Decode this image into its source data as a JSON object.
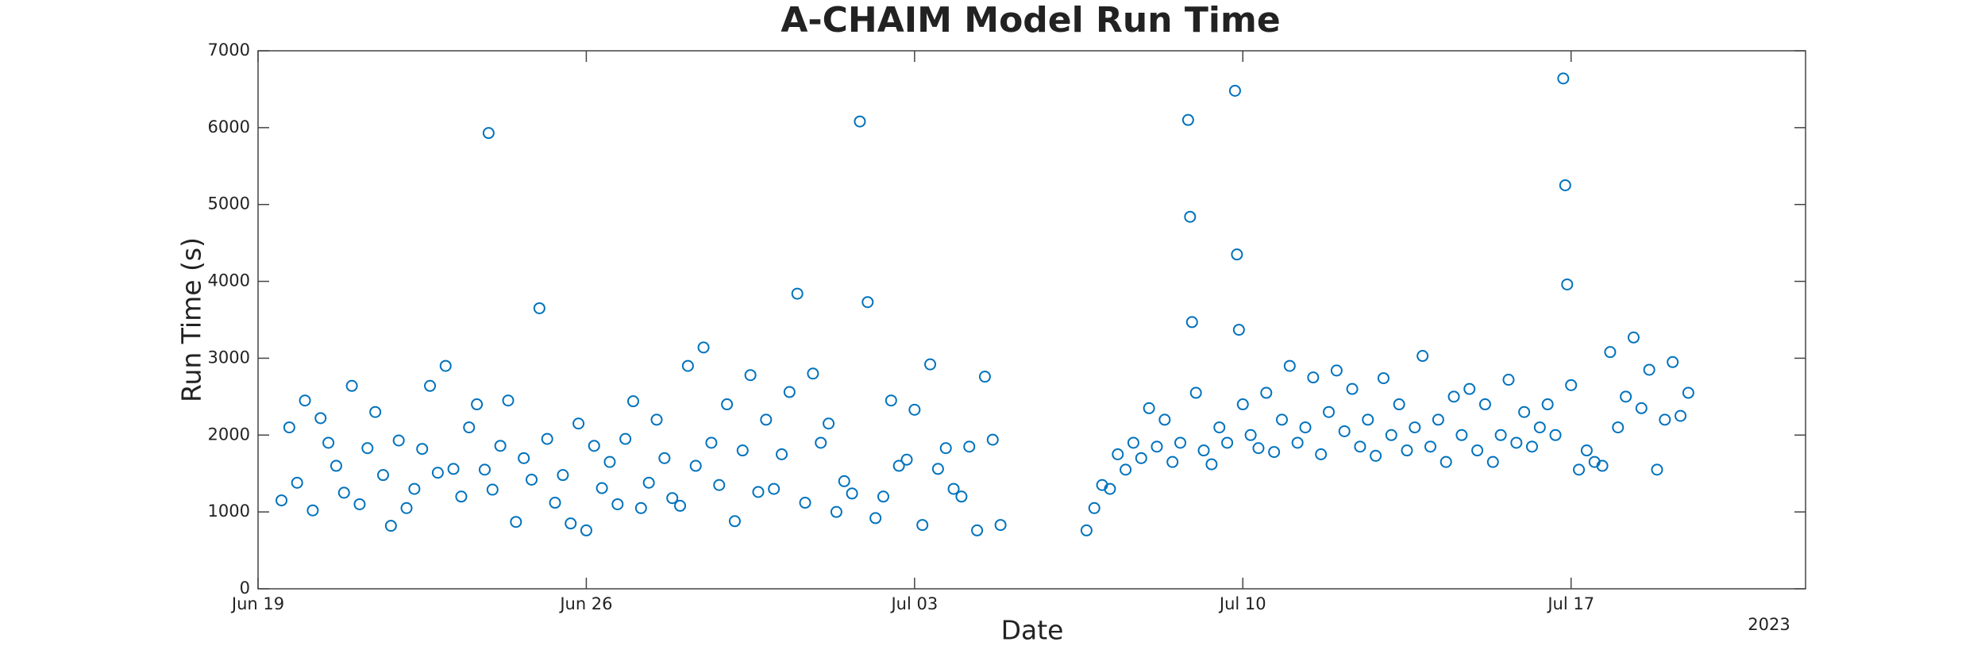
{
  "chart_data": {
    "type": "scatter",
    "title": "A-CHAIM Model Run Time",
    "x_label": "Date",
    "y_label": "Run Time (s)",
    "year_label": "2023",
    "series": [
      {
        "name": "Run Time",
        "color": "#0072bd",
        "x": [
          "2023-06-19T12:00",
          "2023-06-19T16:00",
          "2023-06-19T20:00",
          "2023-06-20T00:00",
          "2023-06-20T04:00",
          "2023-06-20T08:00",
          "2023-06-20T12:00",
          "2023-06-20T16:00",
          "2023-06-20T20:00",
          "2023-06-21T00:00",
          "2023-06-21T04:00",
          "2023-06-21T08:00",
          "2023-06-21T12:00",
          "2023-06-21T16:00",
          "2023-06-21T20:00",
          "2023-06-22T00:00",
          "2023-06-22T04:00",
          "2023-06-22T08:00",
          "2023-06-22T12:00",
          "2023-06-22T16:00",
          "2023-06-22T20:00",
          "2023-06-23T00:00",
          "2023-06-23T04:00",
          "2023-06-23T08:00",
          "2023-06-23T12:00",
          "2023-06-23T16:00",
          "2023-06-23T20:00",
          "2023-06-23T22:00",
          "2023-06-24T00:00",
          "2023-06-24T04:00",
          "2023-06-24T08:00",
          "2023-06-24T12:00",
          "2023-06-24T16:00",
          "2023-06-24T20:00",
          "2023-06-25T00:00",
          "2023-06-25T04:00",
          "2023-06-25T08:00",
          "2023-06-25T12:00",
          "2023-06-25T16:00",
          "2023-06-25T20:00",
          "2023-06-26T00:00",
          "2023-06-26T04:00",
          "2023-06-26T08:00",
          "2023-06-26T12:00",
          "2023-06-26T16:00",
          "2023-06-26T20:00",
          "2023-06-27T00:00",
          "2023-06-27T04:00",
          "2023-06-27T08:00",
          "2023-06-27T12:00",
          "2023-06-27T16:00",
          "2023-06-27T20:00",
          "2023-06-28T00:00",
          "2023-06-28T04:00",
          "2023-06-28T08:00",
          "2023-06-28T12:00",
          "2023-06-28T16:00",
          "2023-06-28T20:00",
          "2023-06-29T00:00",
          "2023-06-29T04:00",
          "2023-06-29T08:00",
          "2023-06-29T12:00",
          "2023-06-29T16:00",
          "2023-06-29T20:00",
          "2023-06-30T00:00",
          "2023-06-30T04:00",
          "2023-06-30T08:00",
          "2023-06-30T12:00",
          "2023-06-30T16:00",
          "2023-06-30T20:00",
          "2023-07-01T00:00",
          "2023-07-01T04:00",
          "2023-07-01T08:00",
          "2023-07-01T12:00",
          "2023-07-01T16:00",
          "2023-07-01T20:00",
          "2023-07-02T00:00",
          "2023-07-02T04:00",
          "2023-07-02T08:00",
          "2023-07-02T12:00",
          "2023-07-02T16:00",
          "2023-07-02T20:00",
          "2023-07-03T00:00",
          "2023-07-03T04:00",
          "2023-07-03T08:00",
          "2023-07-03T12:00",
          "2023-07-03T16:00",
          "2023-07-03T20:00",
          "2023-07-04T00:00",
          "2023-07-04T04:00",
          "2023-07-04T08:00",
          "2023-07-04T12:00",
          "2023-07-04T16:00",
          "2023-07-04T20:00",
          "2023-07-06T16:00",
          "2023-07-06T20:00",
          "2023-07-07T00:00",
          "2023-07-07T04:00",
          "2023-07-07T08:00",
          "2023-07-07T12:00",
          "2023-07-07T16:00",
          "2023-07-07T20:00",
          "2023-07-08T00:00",
          "2023-07-08T04:00",
          "2023-07-08T08:00",
          "2023-07-08T12:00",
          "2023-07-08T16:00",
          "2023-07-08T20:00",
          "2023-07-08T21:00",
          "2023-07-08T22:00",
          "2023-07-09T00:00",
          "2023-07-09T04:00",
          "2023-07-09T08:00",
          "2023-07-09T12:00",
          "2023-07-09T16:00",
          "2023-07-09T20:00",
          "2023-07-09T21:00",
          "2023-07-09T22:00",
          "2023-07-10T00:00",
          "2023-07-10T04:00",
          "2023-07-10T08:00",
          "2023-07-10T12:00",
          "2023-07-10T16:00",
          "2023-07-10T20:00",
          "2023-07-11T00:00",
          "2023-07-11T04:00",
          "2023-07-11T08:00",
          "2023-07-11T12:00",
          "2023-07-11T16:00",
          "2023-07-11T20:00",
          "2023-07-12T00:00",
          "2023-07-12T04:00",
          "2023-07-12T08:00",
          "2023-07-12T12:00",
          "2023-07-12T16:00",
          "2023-07-12T20:00",
          "2023-07-13T00:00",
          "2023-07-13T04:00",
          "2023-07-13T08:00",
          "2023-07-13T12:00",
          "2023-07-13T16:00",
          "2023-07-13T20:00",
          "2023-07-14T00:00",
          "2023-07-14T04:00",
          "2023-07-14T08:00",
          "2023-07-14T12:00",
          "2023-07-14T16:00",
          "2023-07-14T20:00",
          "2023-07-15T00:00",
          "2023-07-15T04:00",
          "2023-07-15T08:00",
          "2023-07-15T12:00",
          "2023-07-15T16:00",
          "2023-07-15T20:00",
          "2023-07-16T00:00",
          "2023-07-16T04:00",
          "2023-07-16T08:00",
          "2023-07-16T12:00",
          "2023-07-16T16:00",
          "2023-07-16T20:00",
          "2023-07-16T21:00",
          "2023-07-16T22:00",
          "2023-07-17T00:00",
          "2023-07-17T04:00",
          "2023-07-17T08:00",
          "2023-07-17T12:00",
          "2023-07-17T16:00",
          "2023-07-17T20:00",
          "2023-07-18T00:00",
          "2023-07-18T04:00",
          "2023-07-18T08:00",
          "2023-07-18T12:00",
          "2023-07-18T16:00",
          "2023-07-18T20:00",
          "2023-07-19T00:00",
          "2023-07-19T04:00",
          "2023-07-19T08:00",
          "2023-07-19T12:00"
        ],
        "values": [
          1150,
          2100,
          1380,
          2450,
          1020,
          2220,
          1900,
          1600,
          1250,
          2640,
          1100,
          1830,
          2300,
          1480,
          820,
          1930,
          1050,
          1300,
          1820,
          2640,
          1510,
          2900,
          1560,
          1200,
          2100,
          2400,
          1550,
          5930,
          1290,
          1860,
          2450,
          870,
          1700,
          1420,
          3650,
          1950,
          1120,
          1480,
          850,
          2150,
          760,
          1860,
          1310,
          1650,
          1100,
          1950,
          2440,
          1050,
          1380,
          2200,
          1700,
          1180,
          1080,
          2900,
          1600,
          3140,
          1900,
          1350,
          2400,
          880,
          1800,
          2780,
          1260,
          2200,
          1300,
          1750,
          2560,
          3840,
          1120,
          2800,
          1900,
          2150,
          1000,
          1400,
          1240,
          6080,
          3730,
          920,
          1200,
          2450,
          1600,
          1680,
          2330,
          830,
          2920,
          1560,
          1830,
          1300,
          1200,
          1850,
          760,
          2760,
          1940,
          830,
          760,
          1050,
          1350,
          1300,
          1750,
          1550,
          1900,
          1700,
          2350,
          1850,
          2200,
          1650,
          1900,
          6100,
          4840,
          3470,
          2550,
          1800,
          1620,
          2100,
          1900,
          6480,
          4350,
          3370,
          2400,
          2000,
          1830,
          2550,
          1780,
          2200,
          2900,
          1900,
          2100,
          2750,
          1750,
          2300,
          2840,
          2050,
          2600,
          1850,
          2200,
          1730,
          2740,
          2000,
          2400,
          1800,
          2100,
          3030,
          1850,
          2200,
          1650,
          2500,
          2000,
          2600,
          1800,
          2400,
          1650,
          2000,
          2720,
          1900,
          2300,
          1850,
          2100,
          2400,
          2000,
          6640,
          5250,
          3960,
          2650,
          1550,
          1800,
          1650,
          1600,
          3080,
          2100,
          2500,
          3270,
          2350,
          2850,
          1550,
          2200,
          2950,
          2250,
          2550
        ]
      }
    ],
    "xlim": [
      "2023-06-19T00:00",
      "2023-07-22T00:00"
    ],
    "xticks": [
      {
        "value": "2023-06-19T00:00",
        "label": "Jun 19"
      },
      {
        "value": "2023-06-26T00:00",
        "label": "Jun 26"
      },
      {
        "value": "2023-07-03T00:00",
        "label": "Jul 03"
      },
      {
        "value": "2023-07-10T00:00",
        "label": "Jul 10"
      },
      {
        "value": "2023-07-17T00:00",
        "label": "Jul 17"
      }
    ],
    "ylim": [
      0,
      7000
    ],
    "yticks": [
      0,
      1000,
      2000,
      3000,
      4000,
      5000,
      6000,
      7000
    ],
    "grid": false
  }
}
